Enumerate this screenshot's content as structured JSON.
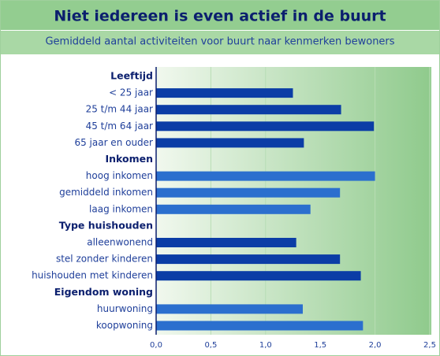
{
  "chart_data": {
    "type": "barh",
    "title": "Niet iedereen is even actief in de buurt",
    "subtitle": "Gemiddeld aantal activiteiten voor buurt naar kenmerken bewoners",
    "categories": [
      "Leeftijd",
      "< 25 jaar",
      "25 t/m 44 jaar",
      "45 t/m 64 jaar",
      "65 jaar en ouder",
      "Inkomen",
      "hoog inkomen",
      "gemiddeld inkomen",
      "laag inkomen",
      "Type huishouden",
      "alleenwonend",
      "stel zonder kinderen",
      "huishouden met kinderen",
      "Eigendom woning",
      "huurwoning",
      "koopwoning"
    ],
    "values": [
      null,
      1.25,
      1.69,
      1.99,
      1.35,
      null,
      2.0,
      1.68,
      1.41,
      null,
      1.28,
      1.68,
      1.87,
      null,
      1.34,
      1.89
    ],
    "colors": [
      null,
      "#0b3da6",
      "#0b3da6",
      "#0b3da6",
      "#0b3da6",
      null,
      "#2b6fce",
      "#2b6fce",
      "#2b6fce",
      null,
      "#0b3da6",
      "#0b3da6",
      "#0b3da6",
      null,
      "#2b6fce",
      "#2b6fce"
    ],
    "xlim": [
      0,
      2.5
    ],
    "xticks": [
      {
        "value": 0,
        "label": "0,0"
      },
      {
        "value": 0.5,
        "label": "0,5"
      },
      {
        "value": 1,
        "label": "1,0"
      },
      {
        "value": 1.5,
        "label": "1,5"
      },
      {
        "value": 2,
        "label": "2,0"
      },
      {
        "value": 2.5,
        "label": "2,5"
      }
    ],
    "grid": true
  }
}
